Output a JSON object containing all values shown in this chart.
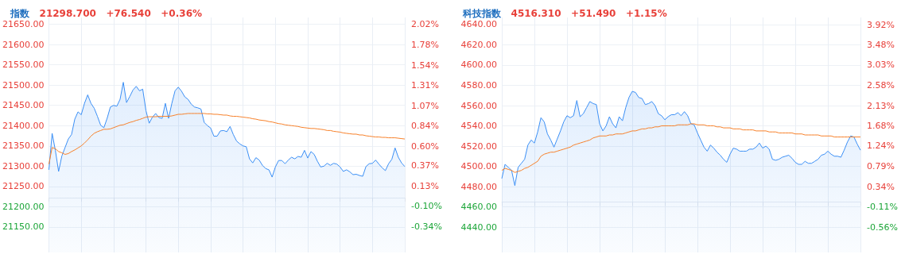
{
  "chart_data": [
    {
      "type": "line",
      "title": "指数",
      "subtitle": "21298.700   +76.540   +0.36%",
      "marker": "none",
      "grid": true,
      "categories": [
        null,
        null,
        null,
        null,
        null,
        null,
        null,
        null,
        null,
        null,
        null,
        null,
        null,
        null,
        null,
        null,
        null,
        null,
        null,
        null,
        null,
        null,
        null,
        null,
        null,
        null,
        null,
        null,
        null,
        null,
        null,
        null,
        null,
        null,
        null,
        null,
        null,
        null,
        null,
        null,
        null,
        null,
        null,
        null,
        null,
        null,
        null,
        null,
        null,
        null,
        null,
        null,
        null,
        null,
        null,
        null,
        null,
        null,
        null,
        null,
        null,
        null,
        null,
        null,
        null,
        null,
        null,
        null,
        null,
        null,
        null,
        null,
        null,
        null,
        null,
        null,
        null,
        null,
        null,
        null,
        null,
        null,
        null,
        null,
        null,
        null,
        null,
        null,
        null,
        null,
        null,
        null,
        null,
        null,
        null,
        null,
        null,
        null,
        null,
        null,
        null,
        null,
        null,
        null,
        null,
        null,
        null,
        null,
        null,
        null,
        null
      ],
      "ylim": [
        21087,
        21667
      ],
      "yticks": [
        {
          "value": 21150,
          "label": "21150.00"
        },
        {
          "value": 21200,
          "label": "21200.00"
        },
        {
          "value": 21250,
          "label": "21250.00"
        },
        {
          "value": 21300,
          "label": "21300.00"
        },
        {
          "value": 21350,
          "label": "21350.00"
        },
        {
          "value": 21400,
          "label": "21400.00"
        },
        {
          "value": 21450,
          "label": "21450.00"
        },
        {
          "value": 21500,
          "label": "21500.00"
        },
        {
          "value": 21550,
          "label": "21550.00"
        },
        {
          "value": 21600,
          "label": "21600.00"
        },
        {
          "value": 21650,
          "label": "21650.00"
        }
      ],
      "y2lim": [
        -0.637,
        2.096
      ],
      "y2ticks": [
        {
          "value": -0.34,
          "label": "-0.34%"
        },
        {
          "value": -0.1,
          "label": "-0.10%"
        },
        {
          "value": 0.13,
          "label": "0.13%"
        },
        {
          "value": 0.37,
          "label": "0.37%"
        },
        {
          "value": 0.6,
          "label": "0.60%"
        },
        {
          "value": 0.84,
          "label": "0.84%"
        },
        {
          "value": 1.07,
          "label": "1.07%"
        },
        {
          "value": 1.31,
          "label": "1.31%"
        },
        {
          "value": 1.54,
          "label": "1.54%"
        },
        {
          "value": 1.78,
          "label": "1.78%"
        },
        {
          "value": 2.02,
          "label": "2.02%"
        }
      ],
      "series": [
        {
          "type": "area",
          "color": "#3b8ff5",
          "values": [
            21291,
            21381,
            21339,
            21287,
            21325,
            21346,
            21367,
            21378,
            21416,
            21434,
            21427,
            21455,
            21476,
            21455,
            21443,
            21423,
            21401,
            21395,
            21418,
            21446,
            21450,
            21448,
            21465,
            21507,
            21457,
            21472,
            21488,
            21497,
            21486,
            21490,
            21437,
            21406,
            21421,
            21430,
            21420,
            21418,
            21455,
            21418,
            21455,
            21486,
            21495,
            21485,
            21471,
            21465,
            21453,
            21446,
            21444,
            21441,
            21408,
            21400,
            21394,
            21374,
            21374,
            21387,
            21388,
            21385,
            21398,
            21378,
            21362,
            21355,
            21350,
            21348,
            21318,
            21308,
            21321,
            21315,
            21302,
            21294,
            21291,
            21273,
            21298,
            21314,
            21314,
            21306,
            21315,
            21322,
            21318,
            21324,
            21322,
            21339,
            21320,
            21336,
            21329,
            21312,
            21298,
            21300,
            21307,
            21302,
            21307,
            21305,
            21298,
            21287,
            21291,
            21286,
            21279,
            21280,
            21277,
            21275,
            21299,
            21306,
            21307,
            21315,
            21305,
            21296,
            21289,
            21306,
            21317,
            21345,
            21322,
            21308,
            21299
          ]
        },
        {
          "type": "line",
          "color": "#f7802a",
          "values": [
            21305,
            21346,
            21343,
            21336,
            21333,
            21329,
            21331,
            21336,
            21340,
            21345,
            21350,
            21357,
            21365,
            21374,
            21381,
            21385,
            21388,
            21391,
            21391,
            21392,
            21395,
            21398,
            21401,
            21402,
            21405,
            21408,
            21410,
            21413,
            21415,
            21418,
            21421,
            21422,
            21422,
            21422,
            21423,
            21423,
            21423,
            21423,
            21424,
            21426,
            21428,
            21428,
            21429,
            21430,
            21430,
            21430,
            21430,
            21430,
            21430,
            21429,
            21429,
            21428,
            21428,
            21427,
            21426,
            21426,
            21424,
            21423,
            21423,
            21422,
            21421,
            21420,
            21419,
            21417,
            21416,
            21414,
            21413,
            21412,
            21410,
            21409,
            21407,
            21405,
            21404,
            21402,
            21401,
            21400,
            21399,
            21398,
            21396,
            21395,
            21394,
            21393,
            21393,
            21392,
            21391,
            21390,
            21388,
            21388,
            21386,
            21385,
            21384,
            21382,
            21381,
            21380,
            21379,
            21379,
            21377,
            21377,
            21375,
            21374,
            21373,
            21372,
            21372,
            21371,
            21371,
            21370,
            21370,
            21370,
            21369,
            21368,
            21367
          ]
        }
      ]
    },
    {
      "type": "line",
      "title": "科技指数",
      "subtitle": "4516.310   +51.490   +1.15%",
      "marker": "none",
      "grid": true,
      "categories": [
        null,
        null,
        null,
        null,
        null,
        null,
        null,
        null,
        null,
        null,
        null,
        null,
        null,
        null,
        null,
        null,
        null,
        null,
        null,
        null,
        null,
        null,
        null,
        null,
        null,
        null,
        null,
        null,
        null,
        null,
        null,
        null,
        null,
        null,
        null,
        null,
        null,
        null,
        null,
        null,
        null,
        null,
        null,
        null,
        null,
        null,
        null,
        null,
        null,
        null,
        null,
        null,
        null,
        null,
        null,
        null,
        null,
        null,
        null,
        null,
        null,
        null,
        null,
        null,
        null,
        null,
        null,
        null,
        null,
        null,
        null,
        null,
        null,
        null,
        null,
        null,
        null,
        null,
        null,
        null,
        null,
        null,
        null,
        null,
        null,
        null,
        null,
        null,
        null,
        null,
        null,
        null,
        null,
        null,
        null,
        null,
        null,
        null,
        null,
        null,
        null,
        null,
        null,
        null,
        null,
        null,
        null,
        null,
        null,
        null,
        null
      ],
      "ylim": [
        4415,
        4647
      ],
      "yticks": [
        {
          "value": 4440,
          "label": "4440.00"
        },
        {
          "value": 4460,
          "label": "4460.00"
        },
        {
          "value": 4480,
          "label": "4480.00"
        },
        {
          "value": 4500,
          "label": "4500.00"
        },
        {
          "value": 4520,
          "label": "4520.00"
        },
        {
          "value": 4540,
          "label": "4540.00"
        },
        {
          "value": 4560,
          "label": "4560.00"
        },
        {
          "value": 4580,
          "label": "4580.00"
        },
        {
          "value": 4600,
          "label": "4600.00"
        },
        {
          "value": 4620,
          "label": "4620.00"
        },
        {
          "value": 4640,
          "label": "4640.00"
        }
      ],
      "y2lim": [
        -1.116,
        4.08
      ],
      "y2ticks": [
        {
          "value": -0.56,
          "label": "-0.56%"
        },
        {
          "value": -0.11,
          "label": "-0.11%"
        },
        {
          "value": 0.34,
          "label": "0.34%"
        },
        {
          "value": 0.79,
          "label": "0.79%"
        },
        {
          "value": 1.24,
          "label": "1.24%"
        },
        {
          "value": 1.68,
          "label": "1.68%"
        },
        {
          "value": 2.13,
          "label": "2.13%"
        },
        {
          "value": 2.58,
          "label": "2.58%"
        },
        {
          "value": 3.03,
          "label": "3.03%"
        },
        {
          "value": 3.48,
          "label": "3.48%"
        },
        {
          "value": 3.92,
          "label": "3.92%"
        }
      ],
      "series": [
        {
          "type": "area",
          "color": "#3b8ff5",
          "values": [
            4488,
            4502,
            4499,
            4496,
            4481,
            4499,
            4503,
            4507,
            4521,
            4526,
            4523,
            4534,
            4548,
            4544,
            4532,
            4526,
            4519,
            4527,
            4535,
            4544,
            4550,
            4548,
            4550,
            4565,
            4549,
            4552,
            4558,
            4564,
            4562,
            4561,
            4542,
            4535,
            4540,
            4549,
            4542,
            4538,
            4549,
            4545,
            4558,
            4568,
            4574,
            4573,
            4568,
            4567,
            4561,
            4562,
            4564,
            4560,
            4552,
            4550,
            4546,
            4549,
            4551,
            4551,
            4553,
            4550,
            4554,
            4550,
            4542,
            4541,
            4533,
            4526,
            4519,
            4515,
            4521,
            4518,
            4514,
            4511,
            4507,
            4504,
            4512,
            4518,
            4517,
            4515,
            4515,
            4515,
            4517,
            4517,
            4519,
            4523,
            4518,
            4520,
            4517,
            4507,
            4506,
            4507,
            4509,
            4510,
            4511,
            4508,
            4504,
            4502,
            4502,
            4505,
            4503,
            4503,
            4505,
            4507,
            4511,
            4512,
            4515,
            4512,
            4510,
            4510,
            4509,
            4516,
            4524,
            4530,
            4529,
            4522,
            4516
          ]
        },
        {
          "type": "line",
          "color": "#f7802a",
          "values": [
            4496,
            4498,
            4497,
            4496,
            4494,
            4495,
            4496,
            4498,
            4499,
            4501,
            4503,
            4505,
            4510,
            4512,
            4513,
            4514,
            4514,
            4515,
            4516,
            4517,
            4518,
            4519,
            4521,
            4522,
            4523,
            4524,
            4525,
            4526,
            4528,
            4529,
            4530,
            4530,
            4530,
            4531,
            4531,
            4532,
            4532,
            4532,
            4533,
            4534,
            4535,
            4535,
            4536,
            4537,
            4537,
            4538,
            4538,
            4539,
            4539,
            4540,
            4540,
            4540,
            4540,
            4540,
            4541,
            4541,
            4541,
            4541,
            4542,
            4542,
            4541,
            4541,
            4541,
            4540,
            4540,
            4540,
            4539,
            4539,
            4538,
            4538,
            4538,
            4537,
            4537,
            4537,
            4536,
            4536,
            4536,
            4536,
            4535,
            4535,
            4535,
            4535,
            4534,
            4534,
            4534,
            4533,
            4533,
            4533,
            4533,
            4533,
            4532,
            4532,
            4532,
            4531,
            4531,
            4531,
            4531,
            4531,
            4530,
            4530,
            4530,
            4530,
            4529,
            4529,
            4529,
            4529,
            4529,
            4529,
            4529,
            4529,
            4529
          ]
        }
      ]
    }
  ]
}
